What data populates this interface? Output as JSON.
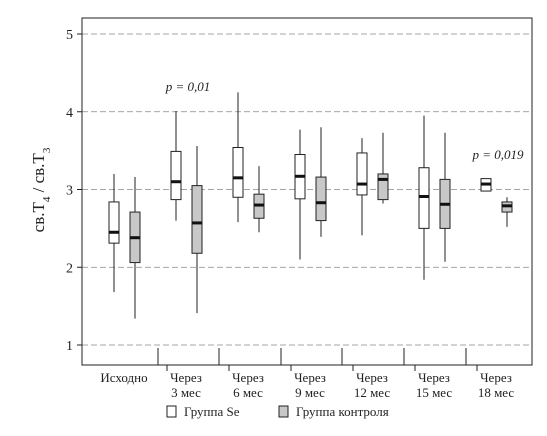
{
  "chart_data": {
    "type": "boxplot",
    "ylabel_parts": {
      "a": "св.",
      "b": "T",
      "b_sub": "4",
      "sep": " / св.",
      "c": "T",
      "c_sub": "3"
    },
    "ylim": [
      1,
      5
    ],
    "yticks": [
      "1",
      "2",
      "3",
      "4",
      "5"
    ],
    "grid": true,
    "categories": [
      {
        "line1": "Исходно",
        "line2": ""
      },
      {
        "line1": "Через",
        "line2": "3 мес"
      },
      {
        "line1": "Через",
        "line2": "6 мес"
      },
      {
        "line1": "Через",
        "line2": "9 мес"
      },
      {
        "line1": "Через",
        "line2": "12 мес"
      },
      {
        "line1": "Через",
        "line2": "15 мес"
      },
      {
        "line1": "Через",
        "line2": "18 мес"
      }
    ],
    "series": [
      {
        "name": "Группа Se",
        "color": "#ffffff",
        "boxes": [
          {
            "min": 1.68,
            "q1": 2.31,
            "median": 2.45,
            "q3": 2.84,
            "max": 3.2
          },
          {
            "min": 2.6,
            "q1": 2.87,
            "median": 3.1,
            "q3": 3.49,
            "max": 4.01
          },
          {
            "min": 2.58,
            "q1": 2.9,
            "median": 3.15,
            "q3": 3.54,
            "max": 4.25
          },
          {
            "min": 2.1,
            "q1": 2.88,
            "median": 3.17,
            "q3": 3.45,
            "max": 3.77
          },
          {
            "min": 2.41,
            "q1": 2.93,
            "median": 3.07,
            "q3": 3.47,
            "max": 3.66
          },
          {
            "min": 1.84,
            "q1": 2.5,
            "median": 2.91,
            "q3": 3.28,
            "max": 3.95
          },
          {
            "min": 2.98,
            "q1": 2.98,
            "median": 3.07,
            "q3": 3.14,
            "max": 3.14
          }
        ]
      },
      {
        "name": "Группа контроля",
        "color": "#c8c8c8",
        "boxes": [
          {
            "min": 1.34,
            "q1": 2.06,
            "median": 2.38,
            "q3": 2.71,
            "max": 3.16
          },
          {
            "min": 1.41,
            "q1": 2.18,
            "median": 2.57,
            "q3": 3.05,
            "max": 3.56
          },
          {
            "min": 2.45,
            "q1": 2.63,
            "median": 2.8,
            "q3": 2.94,
            "max": 3.3
          },
          {
            "min": 2.39,
            "q1": 2.6,
            "median": 2.83,
            "q3": 3.16,
            "max": 3.8
          },
          {
            "min": 2.82,
            "q1": 2.87,
            "median": 3.13,
            "q3": 3.2,
            "max": 3.73
          },
          {
            "min": 2.07,
            "q1": 2.5,
            "median": 2.81,
            "q3": 3.13,
            "max": 3.73
          },
          {
            "min": 2.52,
            "q1": 2.71,
            "median": 2.79,
            "q3": 2.84,
            "max": 2.9
          }
        ]
      }
    ],
    "annotations": [
      {
        "category": 1,
        "y": 4.27,
        "label": "p = 0,01"
      },
      {
        "category": 6,
        "y": 3.39,
        "label": "p = 0,019"
      }
    ],
    "legend": {
      "position": "bottom"
    }
  }
}
